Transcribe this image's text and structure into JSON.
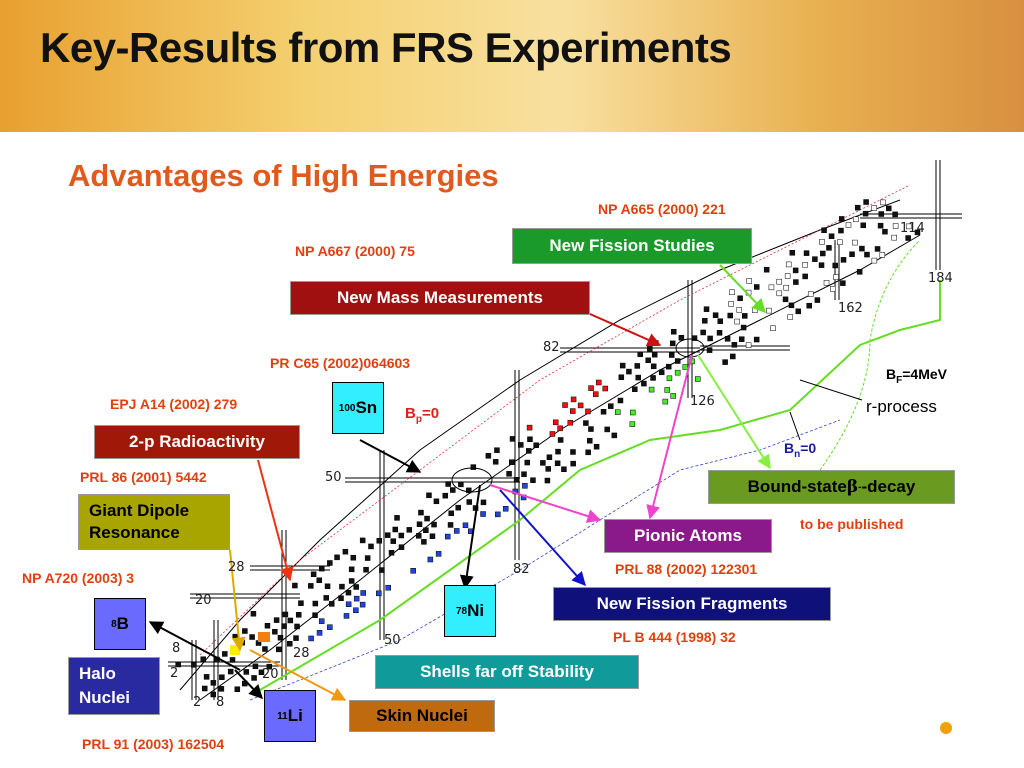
{
  "title": "Key-Results from FRS Experiments",
  "subtitle": "Advantages of High Energies",
  "references": [
    "NP A665 (2000) 221",
    "NP A667 (2000) 75",
    "PR C65 (2002)064603",
    "EPJ  A14 (2002) 279",
    "PRL 86 (2001) 5442",
    "NP A720 (2003) 3",
    "PRL 88 (2002) 122301",
    "PL B 444 (1998) 32",
    "PRL 91 (2003) 162504",
    "to be published"
  ],
  "topics": [
    "New Fission Studies",
    "New Mass Measurements",
    "2-p Radioactivity",
    "Giant Dipole Resonance",
    "Pionic Atoms",
    "New Fission Fragments",
    "Shells far off Stability",
    "Skin Nuclei",
    "Halo Nuclei"
  ],
  "bound_state": {
    "text": "Bound-state ",
    "beta": "β",
    "sup": "-",
    "rest": "-decay"
  },
  "nuclei": [
    {
      "mass": "100",
      "symbol": "Sn"
    },
    {
      "mass": "8",
      "symbol": "B"
    },
    {
      "mass": "11",
      "symbol": "Li"
    },
    {
      "mass": "78",
      "symbol": "Ni"
    }
  ],
  "chart_labels": {
    "bp": {
      "main": "B",
      "sub": "p",
      "rest": "=0"
    },
    "bf": {
      "main": "B",
      "sub": "F",
      "rest": "=4MeV"
    },
    "bn": {
      "main": "B",
      "sub": "n",
      "rest": "=0"
    },
    "r_process": "r-process"
  },
  "magic_numbers": [
    "114",
    "184",
    "162",
    "82",
    "126",
    "50",
    "82",
    "28",
    "20",
    "50",
    "28",
    "8",
    "2",
    "20",
    "2",
    "8"
  ]
}
